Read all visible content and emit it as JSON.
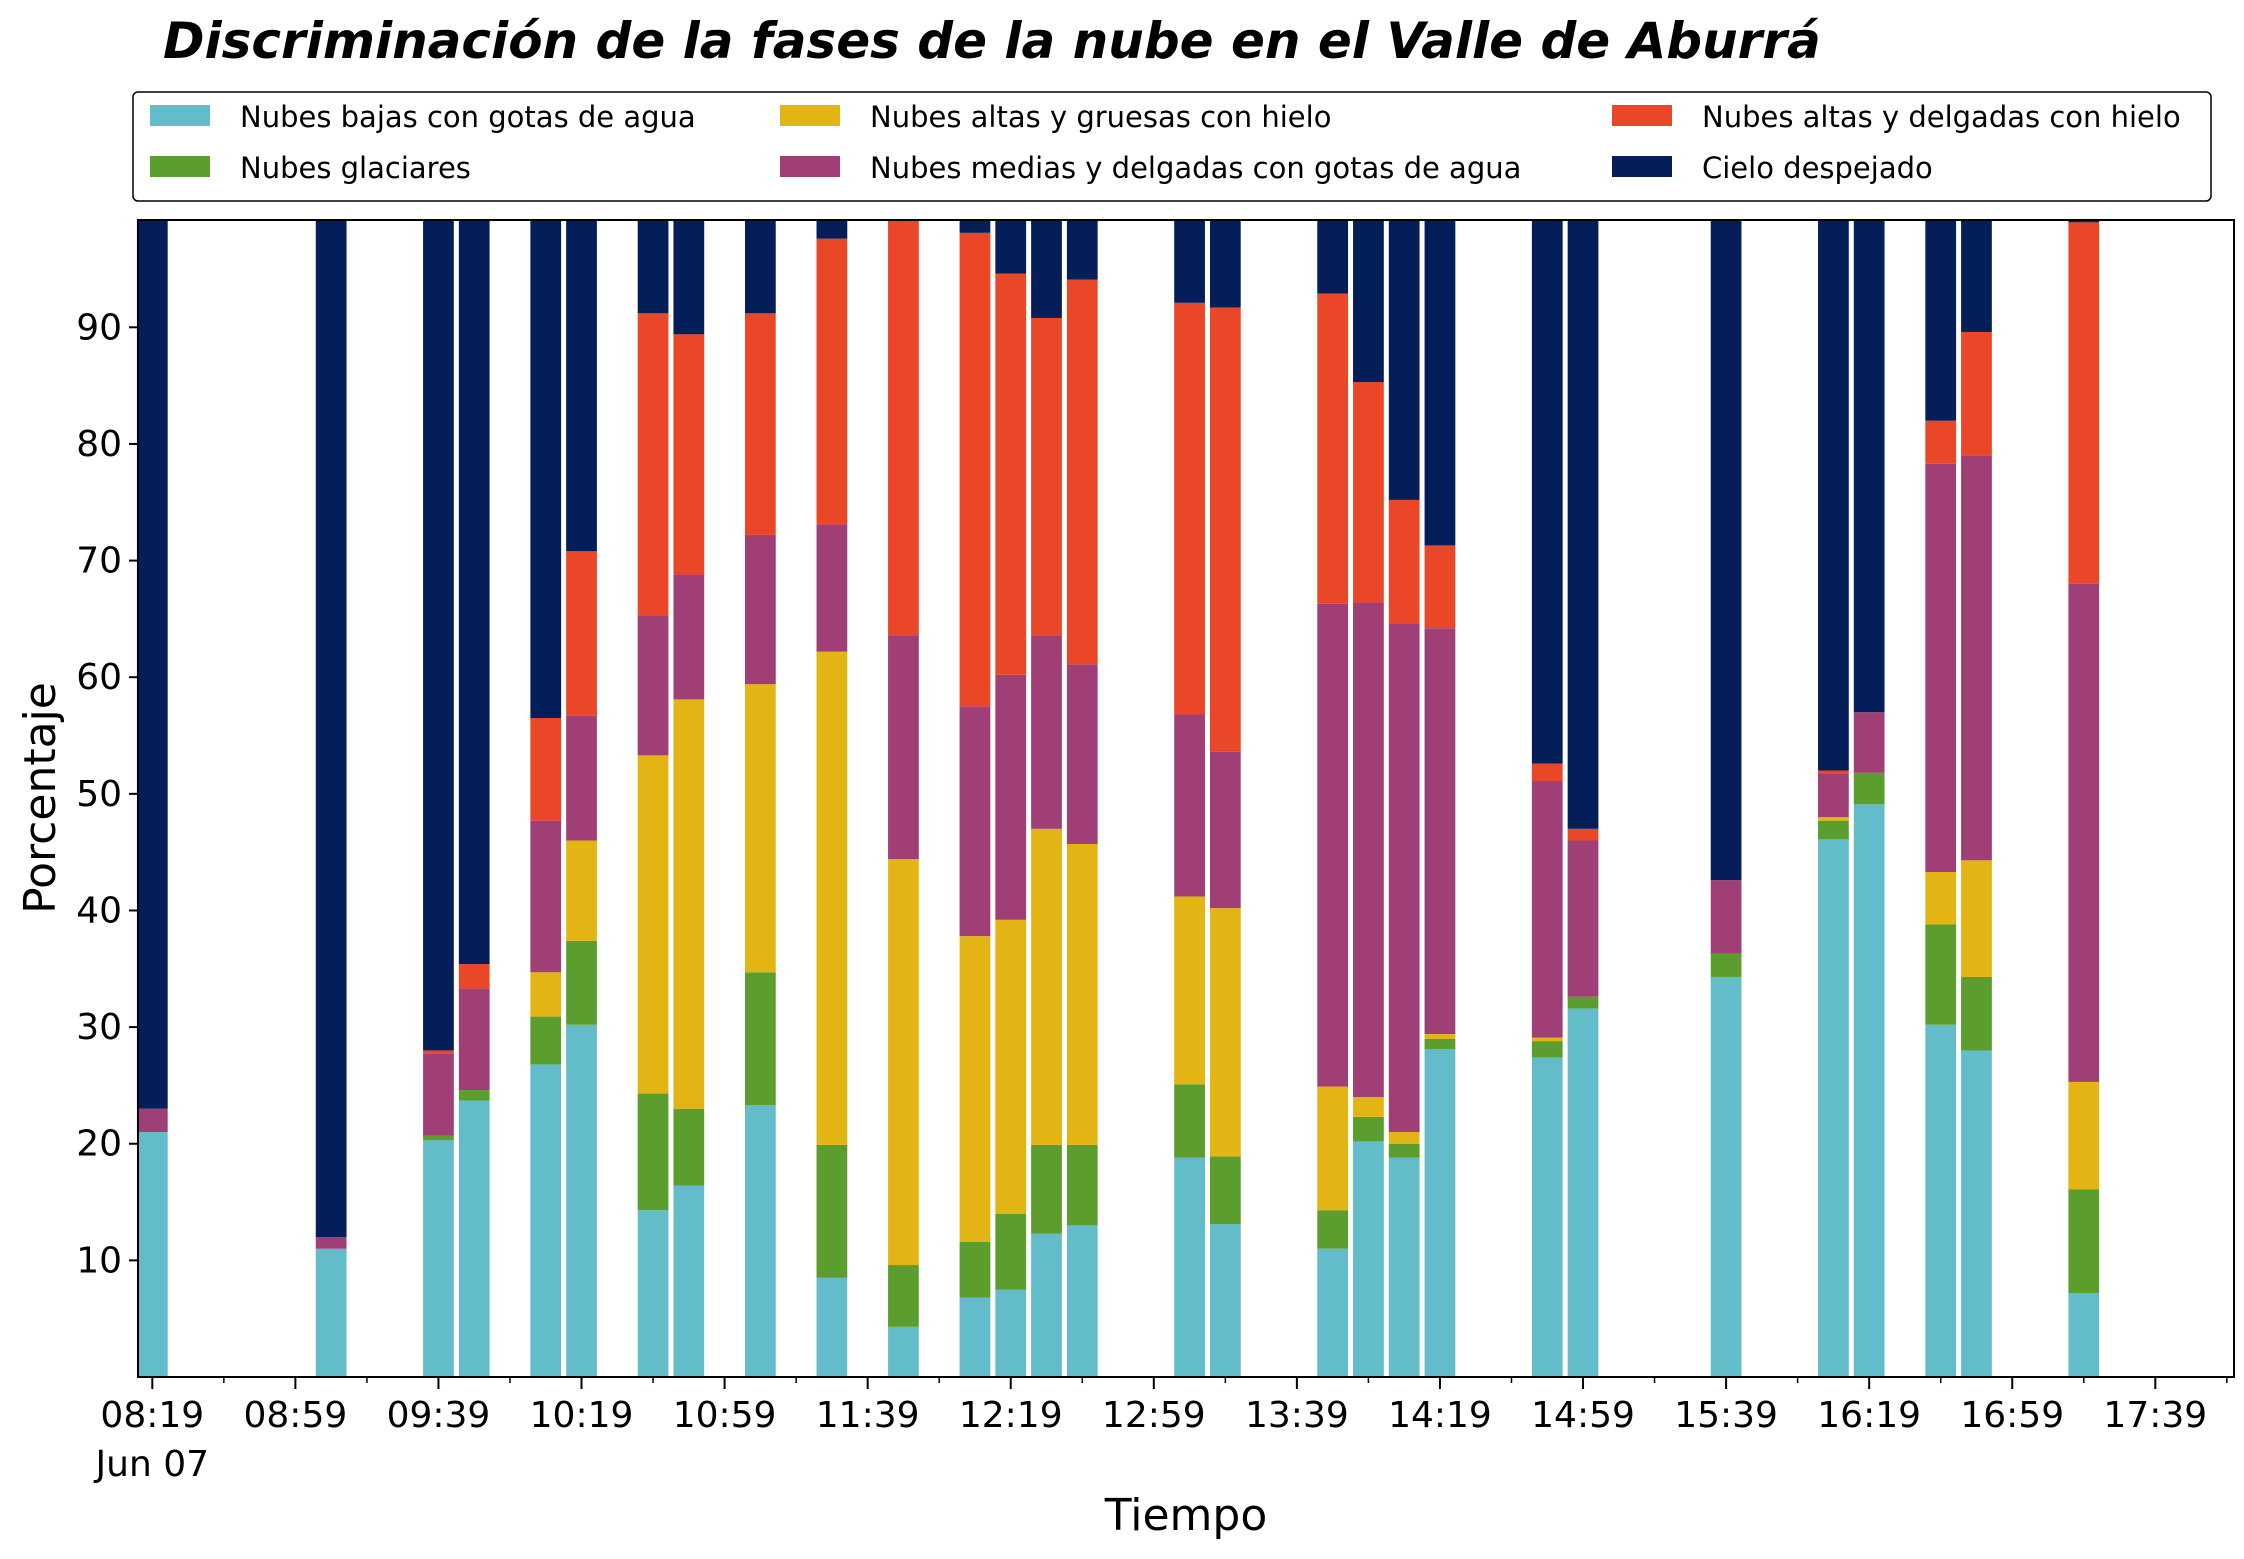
{
  "chart_data": {
    "type": "bar",
    "stacked": true,
    "title": "Discriminación de la fases de la nube en el Valle de Aburrá",
    "xlabel": "Tiempo",
    "ylabel": "Porcentaje",
    "ylim": [
      0,
      99.2
    ],
    "yticks": [
      10,
      20,
      30,
      40,
      50,
      60,
      70,
      80,
      90
    ],
    "xlim": [
      "08:15",
      "18:01"
    ],
    "xticks": [
      "08:19",
      "08:59",
      "09:39",
      "10:19",
      "10:59",
      "11:39",
      "12:19",
      "12:59",
      "13:39",
      "14:19",
      "14:59",
      "15:39",
      "16:19",
      "16:59",
      "17:39"
    ],
    "xtick_sublabel": "Jun 07",
    "grid": false,
    "legend_position": "top, above plot, 3 columns",
    "times": [
      "08:19",
      "09:09",
      "09:39",
      "09:49",
      "10:09",
      "10:19",
      "10:39",
      "10:49",
      "11:09",
      "11:29",
      "11:49",
      "12:09",
      "12:19",
      "12:29",
      "12:39",
      "13:09",
      "13:19",
      "13:49",
      "13:59",
      "14:09",
      "14:19",
      "14:49",
      "14:59",
      "15:39",
      "16:09",
      "16:19",
      "16:39",
      "16:49",
      "17:19"
    ],
    "series": [
      {
        "name": "Nubes bajas con gotas de agua",
        "color": "#63bcc9",
        "values": [
          21,
          11,
          20.3,
          23.7,
          26.8,
          30.2,
          14.3,
          16.4,
          23.3,
          8.5,
          4.3,
          6.8,
          7.5,
          12.3,
          13,
          18.8,
          13.1,
          11,
          20.2,
          18.8,
          28.1,
          27.4,
          31.6,
          34.3,
          46.1,
          49.1,
          30.2,
          28,
          7.2
        ]
      },
      {
        "name": "Nubes glaciares",
        "color": "#5b9e2d",
        "values": [
          0,
          0,
          0.4,
          0.9,
          4.1,
          7.2,
          10,
          6.6,
          11.4,
          11.4,
          5.3,
          4.8,
          6.5,
          7.6,
          6.9,
          6.3,
          5.8,
          3.3,
          2.1,
          1.2,
          0.9,
          1.4,
          1,
          2,
          1.6,
          2.7,
          8.6,
          6.3,
          8.9
        ]
      },
      {
        "name": "Nubes altas y gruesas con hielo",
        "color": "#e2b414",
        "values": [
          0,
          0,
          0,
          0,
          3.8,
          8.6,
          29,
          35.1,
          24.7,
          42.3,
          34.8,
          26.2,
          25.2,
          27.1,
          25.8,
          16.1,
          21.3,
          10.6,
          1.7,
          1,
          0.4,
          0.3,
          0,
          0,
          0.3,
          0,
          4.5,
          10,
          9.2
        ]
      },
      {
        "name": "Nubes medias y delgadas con gotas de agua",
        "color": "#a03f76",
        "values": [
          2,
          1,
          7,
          8.7,
          13,
          10.7,
          12,
          10.7,
          12.8,
          10.9,
          19.2,
          19.7,
          21,
          16.6,
          15.4,
          15.6,
          13.4,
          41.4,
          42.4,
          43.6,
          34.8,
          22,
          13.4,
          6.3,
          3.7,
          5.2,
          35,
          34.7,
          42.7
        ]
      },
      {
        "name": "Nubes altas y delgadas con hielo",
        "color": "#ea4628",
        "values": [
          0,
          0,
          0.3,
          2.1,
          8.8,
          14.1,
          25.9,
          20.6,
          19,
          24.5,
          36.4,
          40.6,
          34.4,
          27.2,
          33,
          35.3,
          38.1,
          26.6,
          18.9,
          10.6,
          7.1,
          1.5,
          1,
          0,
          0.3,
          0,
          3.7,
          10.6,
          31
        ]
      },
      {
        "name": "Cielo despejado",
        "color": "#041e5a",
        "values": [
          77,
          88,
          72,
          64.2,
          43.5,
          29.2,
          8.8,
          10.6,
          8.8,
          2.4,
          0,
          1.9,
          5.4,
          9.2,
          5.9,
          7.9,
          8.3,
          7.1,
          14.9,
          24.8,
          28.7,
          47.4,
          53,
          57.4,
          48,
          43,
          18,
          10.4,
          0.9
        ]
      }
    ]
  }
}
